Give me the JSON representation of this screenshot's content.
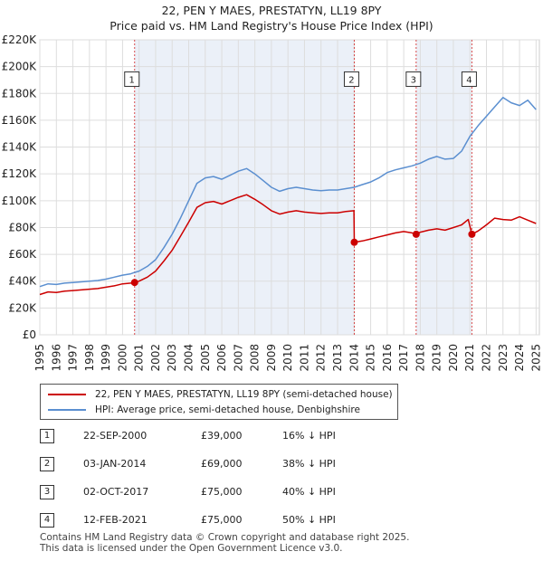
{
  "header": {
    "title": "22, PEN Y MAES, PRESTATYN, LL19 8PY",
    "subtitle": "Price paid vs. HM Land Registry's House Price Index (HPI)"
  },
  "legend": {
    "items": [
      {
        "label": "22, PEN Y MAES, PRESTATYN, LL19 8PY (semi-detached house)",
        "color": "#cc0000"
      },
      {
        "label": "HPI: Average price, semi-detached house, Denbighshire",
        "color": "#5b8fd0"
      }
    ]
  },
  "sales": [
    {
      "num": "1",
      "date": "22-SEP-2000",
      "price": "£39,000",
      "hpi": "16% ↓ HPI"
    },
    {
      "num": "2",
      "date": "03-JAN-2014",
      "price": "£69,000",
      "hpi": "38% ↓ HPI"
    },
    {
      "num": "3",
      "date": "02-OCT-2017",
      "price": "£75,000",
      "hpi": "40% ↓ HPI"
    },
    {
      "num": "4",
      "date": "12-FEB-2021",
      "price": "£75,000",
      "hpi": "50% ↓ HPI"
    }
  ],
  "footer": {
    "line1": "Contains HM Land Registry data © Crown copyright and database right 2025.",
    "line2": "This data is licensed under the Open Government Licence v3.0."
  },
  "chart_data": {
    "type": "line",
    "title": "22, PEN Y MAES, PRESTATYN, LL19 8PY",
    "xlim": [
      1995,
      2025.2
    ],
    "ylim": [
      0,
      220000
    ],
    "x_ticks": [
      1995,
      1996,
      1997,
      1998,
      1999,
      2000,
      2001,
      2002,
      2003,
      2004,
      2005,
      2006,
      2007,
      2008,
      2009,
      2010,
      2011,
      2012,
      2013,
      2014,
      2015,
      2016,
      2017,
      2018,
      2019,
      2020,
      2021,
      2022,
      2023,
      2024,
      2025
    ],
    "y_ticks": [
      0,
      20000,
      40000,
      60000,
      80000,
      100000,
      120000,
      140000,
      160000,
      180000,
      200000,
      220000
    ],
    "y_tick_labels": [
      "£0",
      "£20K",
      "£40K",
      "£60K",
      "£80K",
      "£100K",
      "£120K",
      "£140K",
      "£160K",
      "£180K",
      "£200K",
      "£220K"
    ],
    "grid": true,
    "colors": {
      "hpi": "#5b8fd0",
      "price": "#cc0000",
      "marker_line": "#cc0000",
      "shade": "#dde6f4"
    },
    "series": [
      {
        "name": "HPI: Average price, semi-detached house, Denbighshire",
        "x": [
          1995,
          1995.5,
          1996,
          1996.5,
          1997,
          1997.5,
          1998,
          1998.5,
          1999,
          1999.5,
          2000,
          2000.5,
          2000.73,
          2001,
          2001.5,
          2002,
          2002.5,
          2003,
          2003.5,
          2004,
          2004.5,
          2005,
          2005.5,
          2006,
          2006.5,
          2007,
          2007.5,
          2008,
          2008.5,
          2009,
          2009.5,
          2010,
          2010.5,
          2011,
          2011.5,
          2012,
          2012.5,
          2013,
          2013.5,
          2014,
          2014.5,
          2015,
          2015.5,
          2016,
          2016.5,
          2017,
          2017.5,
          2018,
          2018.5,
          2019,
          2019.5,
          2020,
          2020.5,
          2021,
          2021.5,
          2022,
          2022.5,
          2023,
          2023.5,
          2024,
          2024.5,
          2025
        ],
        "values": [
          36000,
          38000,
          37500,
          38500,
          39000,
          39500,
          40000,
          40500,
          41500,
          43000,
          44500,
          45500,
          46500,
          47500,
          51000,
          56000,
          65000,
          75000,
          87000,
          100000,
          113000,
          117000,
          118000,
          116000,
          119000,
          122000,
          124000,
          120000,
          115000,
          110000,
          107000,
          109000,
          110000,
          109000,
          108000,
          107500,
          108000,
          108000,
          109000,
          110000,
          112000,
          114000,
          117000,
          121000,
          123000,
          124500,
          126000,
          128000,
          131000,
          133000,
          131000,
          131500,
          137000,
          148000,
          156000,
          163000,
          170000,
          177000,
          173000,
          171000,
          175000,
          168000
        ]
      },
      {
        "name": "22, PEN Y MAES, PRESTATYN, LL19 8PY (semi-detached house)",
        "x": [
          1995,
          1995.5,
          1996,
          1996.5,
          1997,
          1997.5,
          1998,
          1998.5,
          1999,
          1999.5,
          2000,
          2000.5,
          2000.73,
          2001,
          2001.5,
          2002,
          2002.5,
          2003,
          2003.5,
          2004,
          2004.5,
          2005,
          2005.5,
          2006,
          2006.5,
          2007,
          2007.5,
          2008,
          2008.5,
          2009,
          2009.5,
          2010,
          2010.5,
          2011,
          2011.5,
          2012,
          2012.5,
          2013,
          2013.5,
          2013.99,
          2014.01,
          2014.5,
          2015,
          2015.5,
          2016,
          2016.5,
          2017,
          2017.5,
          2017.75,
          2018,
          2018.5,
          2019,
          2019.5,
          2020,
          2020.5,
          2020.9,
          2021.12,
          2021.5,
          2022,
          2022.5,
          2023,
          2023.5,
          2024,
          2024.5,
          2025
        ],
        "values": [
          30000,
          32000,
          31500,
          32500,
          33000,
          33500,
          34000,
          34500,
          35500,
          36500,
          38000,
          38500,
          39000,
          40000,
          43000,
          47500,
          55000,
          63000,
          73500,
          84000,
          95000,
          98500,
          99500,
          97500,
          100000,
          102500,
          104500,
          101000,
          97000,
          92500,
          90000,
          91500,
          92500,
          91500,
          91000,
          90500,
          91000,
          91000,
          92000,
          92500,
          69000,
          70000,
          71500,
          73000,
          74500,
          76000,
          77000,
          76000,
          75000,
          76500,
          78000,
          79000,
          78000,
          80000,
          82000,
          86000,
          75000,
          77500,
          82000,
          87000,
          86000,
          85500,
          88000,
          85500,
          83000
        ]
      }
    ],
    "sales": [
      {
        "label": "1",
        "x": 2000.73,
        "value": 39000
      },
      {
        "label": "2",
        "x": 2014.01,
        "value": 69000
      },
      {
        "label": "3",
        "x": 2017.75,
        "value": 75000
      },
      {
        "label": "4",
        "x": 2021.12,
        "value": 75000
      }
    ],
    "sale_label_value": 190000
  }
}
